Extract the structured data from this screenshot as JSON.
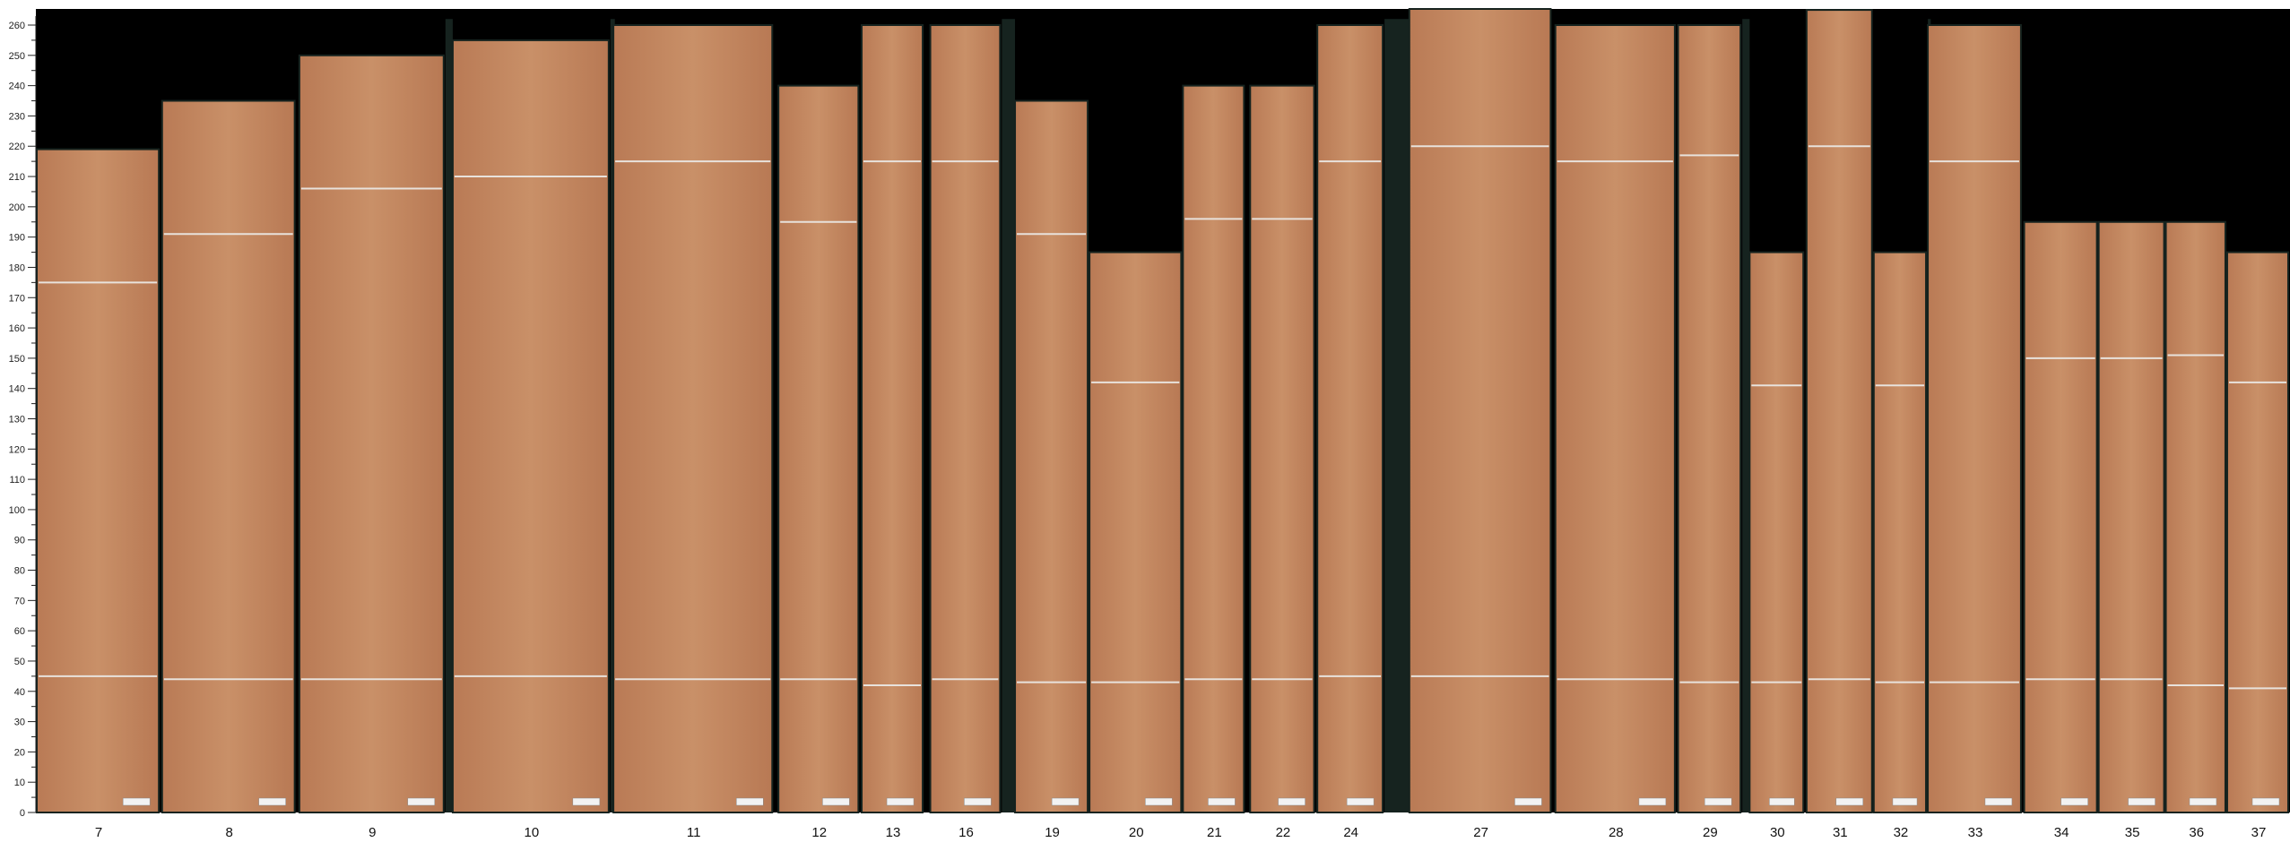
{
  "axis": {
    "unit": "cm",
    "min": 0,
    "max": 260,
    "major_step": 10,
    "minor_step": 5,
    "tick_labels": [
      "0",
      "10",
      "20",
      "30",
      "40",
      "50",
      "60",
      "70",
      "80",
      "90",
      "100",
      "110",
      "120",
      "130",
      "140",
      "150",
      "160",
      "170",
      "180",
      "190",
      "200",
      "210",
      "220",
      "230",
      "240",
      "250",
      "260"
    ]
  },
  "colors": {
    "background": "#000000",
    "gap": "#16231f",
    "wood": "#c48a63",
    "wood_dark": "#b37652",
    "cut_line": "#e8e2dc"
  },
  "boards": [
    {
      "label": "7",
      "length": 219,
      "cut_lines": [
        175,
        45
      ]
    },
    {
      "label": "8",
      "length": 235,
      "cut_lines": [
        191,
        44
      ]
    },
    {
      "label": "9",
      "length": 250,
      "cut_lines": [
        206,
        44
      ]
    },
    {
      "label": "10",
      "length": 255,
      "cut_lines": [
        210,
        45
      ]
    },
    {
      "label": "11",
      "length": 260,
      "cut_lines": [
        215,
        44
      ]
    },
    {
      "label": "12",
      "length": 240,
      "cut_lines": [
        195,
        44
      ]
    },
    {
      "label": "13",
      "length": 260,
      "cut_lines": [
        215,
        42
      ]
    },
    {
      "label": "16",
      "length": 260,
      "cut_lines": [
        215,
        44
      ]
    },
    {
      "label": "19",
      "length": 235,
      "cut_lines": [
        191,
        43
      ]
    },
    {
      "label": "20",
      "length": 185,
      "cut_lines": [
        142,
        43
      ]
    },
    {
      "label": "21",
      "length": 240,
      "cut_lines": [
        196,
        44
      ]
    },
    {
      "label": "22",
      "length": 240,
      "cut_lines": [
        196,
        44
      ]
    },
    {
      "label": "24",
      "length": 260,
      "cut_lines": [
        215,
        45
      ]
    },
    {
      "label": "27",
      "length": 266,
      "cut_lines": [
        220,
        45
      ]
    },
    {
      "label": "28",
      "length": 260,
      "cut_lines": [
        215,
        44
      ]
    },
    {
      "label": "29",
      "length": 260,
      "cut_lines": [
        217,
        43
      ]
    },
    {
      "label": "30",
      "length": 185,
      "cut_lines": [
        141,
        43
      ]
    },
    {
      "label": "31",
      "length": 265,
      "cut_lines": [
        220,
        44
      ]
    },
    {
      "label": "32",
      "length": 185,
      "cut_lines": [
        141,
        43
      ]
    },
    {
      "label": "33",
      "length": 260,
      "cut_lines": [
        215,
        43
      ]
    },
    {
      "label": "34",
      "length": 195,
      "cut_lines": [
        150,
        44
      ]
    },
    {
      "label": "35",
      "length": 195,
      "cut_lines": [
        150,
        44
      ]
    },
    {
      "label": "36",
      "length": 195,
      "cut_lines": [
        151,
        42
      ]
    },
    {
      "label": "37",
      "length": 185,
      "cut_lines": [
        142,
        41
      ]
    }
  ]
}
